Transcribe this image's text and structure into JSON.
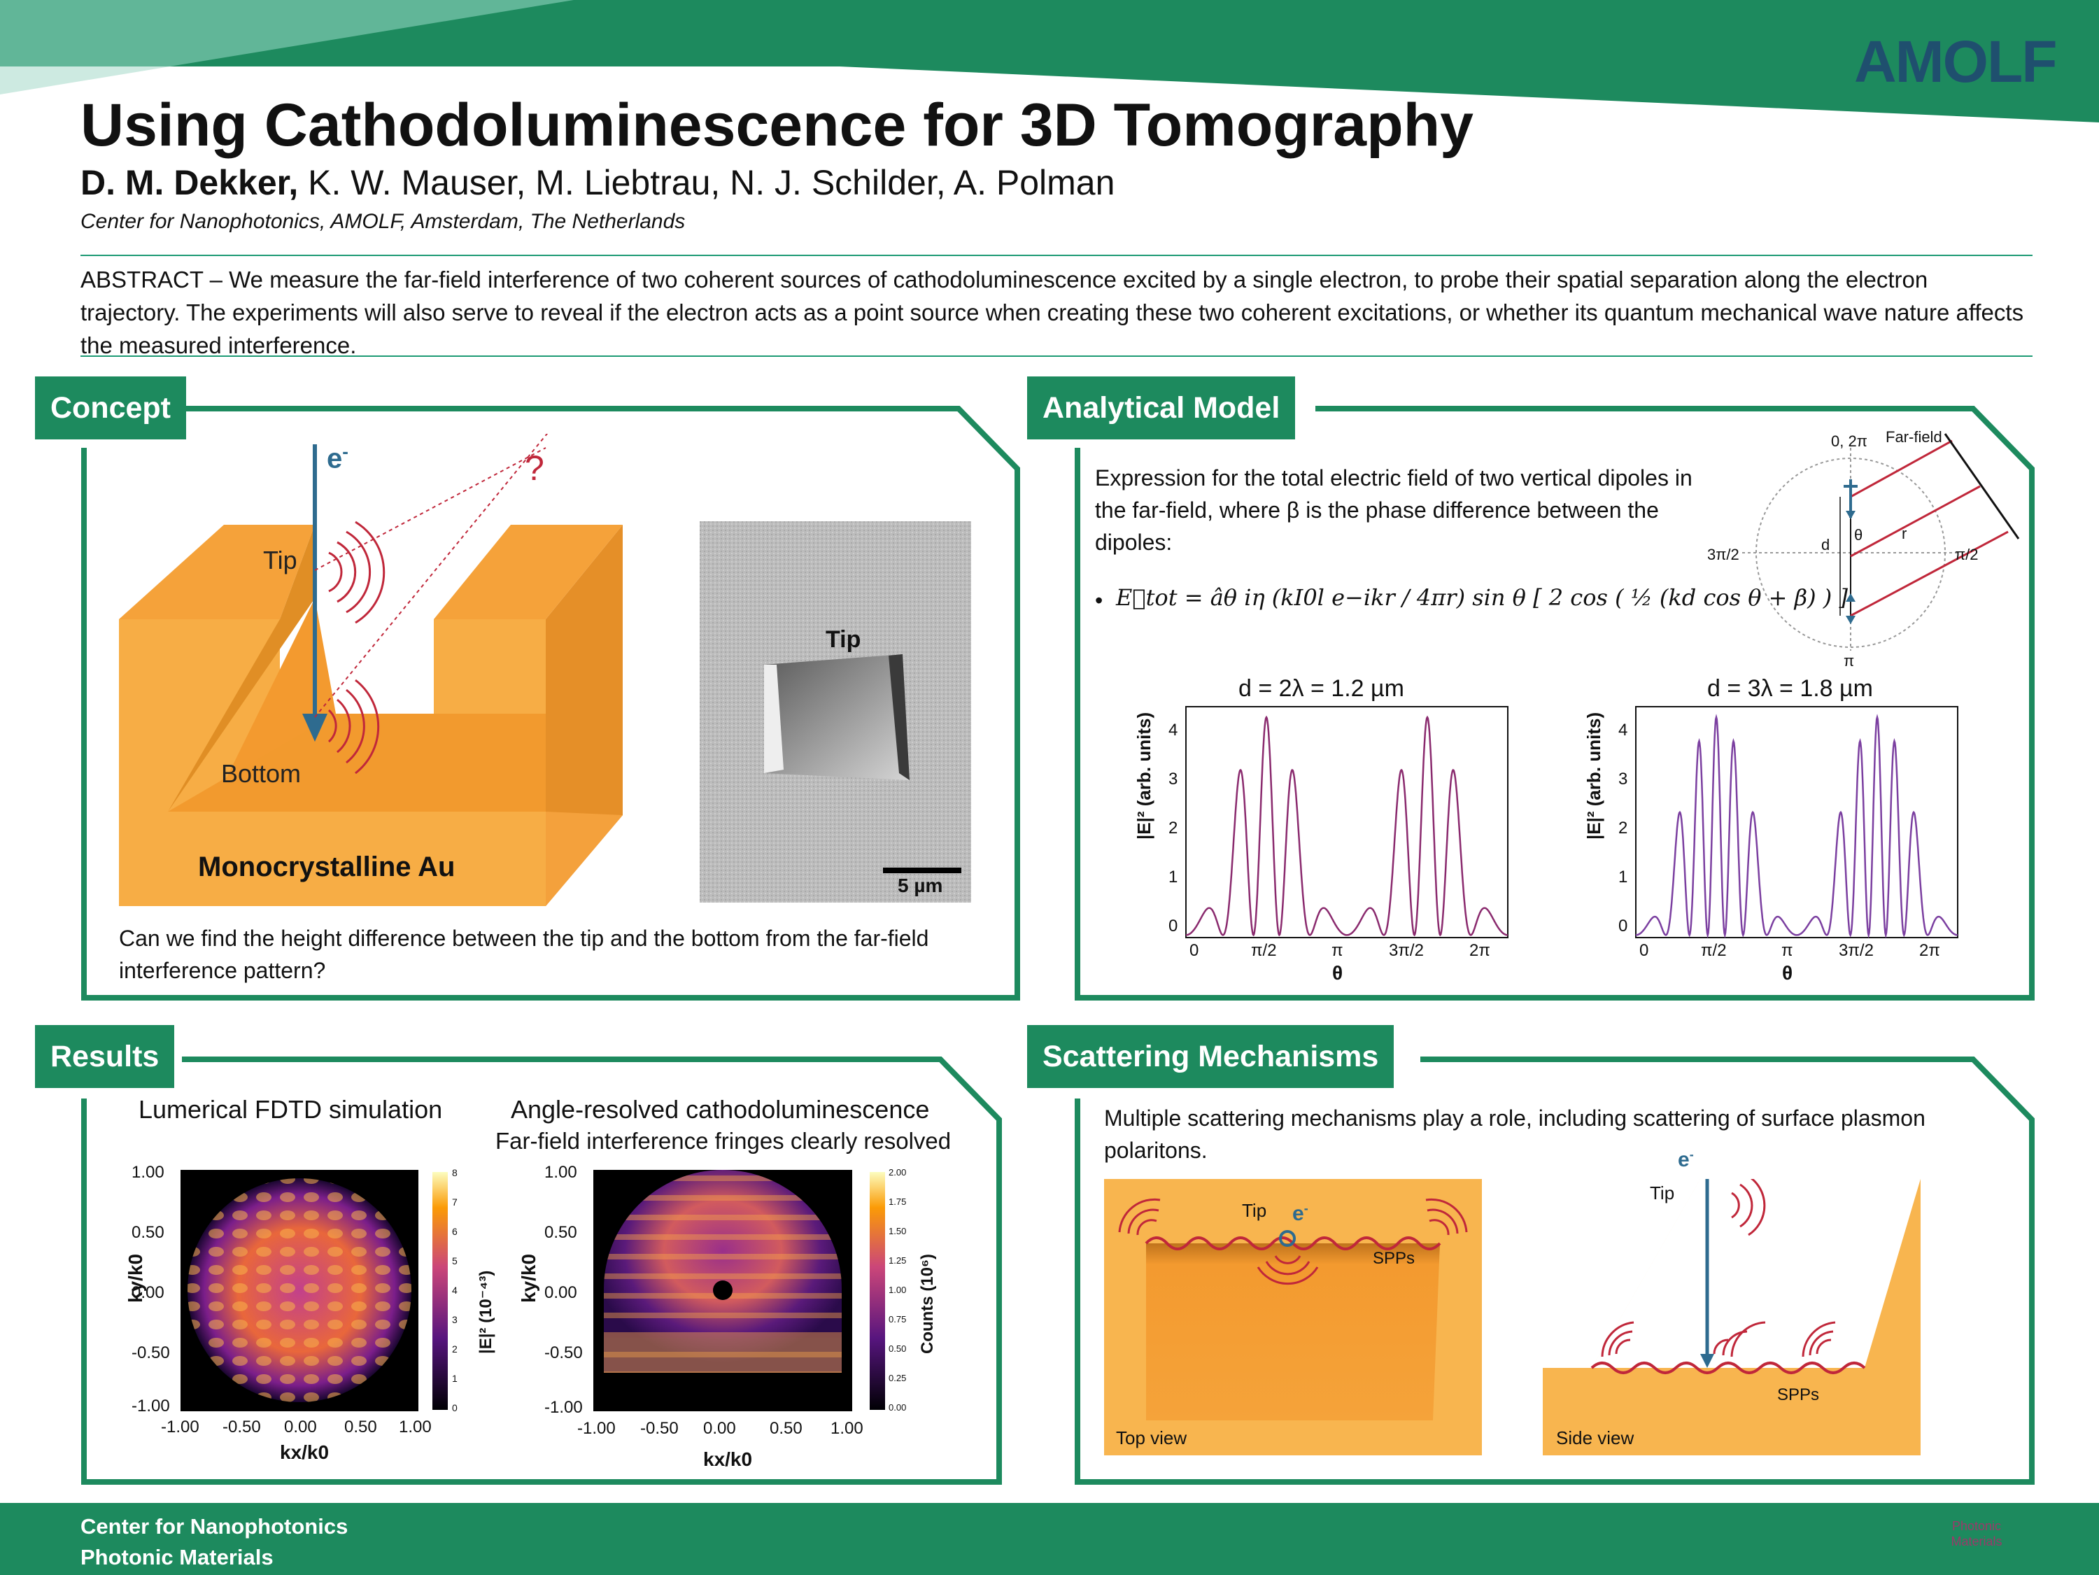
{
  "header": {
    "logo_text": "AMOLF",
    "title": "Using Cathodoluminescence for 3D Tomography",
    "author_lead": "D. M. Dekker,",
    "author_rest": " K. W. Mauser, M. Liebtrau, N. J. Schilder, A. Polman",
    "affiliation": "Center for Nanophotonics, AMOLF, Amsterdam, The Netherlands"
  },
  "abstract": "ABSTRACT – We measure the far-field interference of two coherent sources of cathodoluminescence excited by a single electron, to probe their spatial separation along the electron trajectory. The experiments will also serve to reveal if the electron acts as a point source when creating these two coherent excitations, or whether its quantum mechanical wave nature affects the measured interference.",
  "concept": {
    "title": "Concept",
    "electron": "e",
    "electron_sup": "-",
    "question_mark": "?",
    "tip": "Tip",
    "bottom": "Bottom",
    "material": "Monocrystalline Au",
    "sem_tip": "Tip",
    "scale": "5 µm",
    "question": "Can we find the height difference between the tip and the bottom from the far-field interference pattern?"
  },
  "model": {
    "title": "Analytical Model",
    "description": "Expression for the total electric field of two vertical dipoles in the far-field, where β is the phase difference between the dipoles:",
    "bullet": "•",
    "equation": "E⃗tot = âθ iη (kI0l e−ikr / 4πr) sin θ [ 2 cos ( ½ (kd cos θ + β) ) ]",
    "diagram": {
      "top": "0, 2π",
      "farfield": "Far-field",
      "left": "3π/2",
      "right": "π/2",
      "bottom": "π",
      "d": "d",
      "theta": "θ",
      "r": "r"
    },
    "plot1_title": "d = 2λ = 1.2 µm",
    "plot2_title": "d = 3λ = 1.8 µm",
    "ylabel": "|E|² (arb. units)",
    "xlabel": "θ",
    "yticks": [
      "0",
      "1",
      "2",
      "3",
      "4"
    ],
    "xticks": [
      "0",
      "π/2",
      "π",
      "3π/2",
      "2π"
    ]
  },
  "results": {
    "title": "Results",
    "sim_title": "Lumerical FDTD simulation",
    "exp_title": "Angle-resolved cathodoluminescence",
    "exp_subtitle": "Far-field interference fringes clearly resolved",
    "ylabel": "ky/k0",
    "xlabel": "kx/k0",
    "ticks": [
      "1.00",
      "0.50",
      "0.00",
      "-0.50",
      "-1.00"
    ],
    "xticks": [
      "-1.00",
      "-0.50",
      "0.00",
      "0.50",
      "1.00"
    ],
    "cbar1_label": "|E|² (10⁻⁴³)",
    "cbar1_ticks": [
      "8",
      "7",
      "6",
      "5",
      "4",
      "3",
      "2",
      "1",
      "0"
    ],
    "cbar2_label": "Counts (10⁶)",
    "cbar2_ticks": [
      "2.00",
      "1.75",
      "1.50",
      "1.25",
      "1.00",
      "0.75",
      "0.50",
      "0.25",
      "0.00"
    ]
  },
  "scattering": {
    "title": "Scattering Mechanisms",
    "text": "Multiple scattering mechanisms play a role, including scattering of surface plasmon polaritons.",
    "top_tip": "Tip",
    "top_e": "e",
    "top_spps": "SPPs",
    "top_view": "Top view",
    "side_e": "e",
    "side_tip": "Tip",
    "side_spps": "SPPs",
    "side_view": "Side view"
  },
  "footer": {
    "line1": "Center for Nanophotonics",
    "line2": "Photonic Materials",
    "logo_text": "Photonic Materials"
  },
  "colors": {
    "accent": "#1d8a5e",
    "gold": "#f7a43a",
    "curve": "#8a2a6e",
    "curve2": "#7b3fa0"
  }
}
